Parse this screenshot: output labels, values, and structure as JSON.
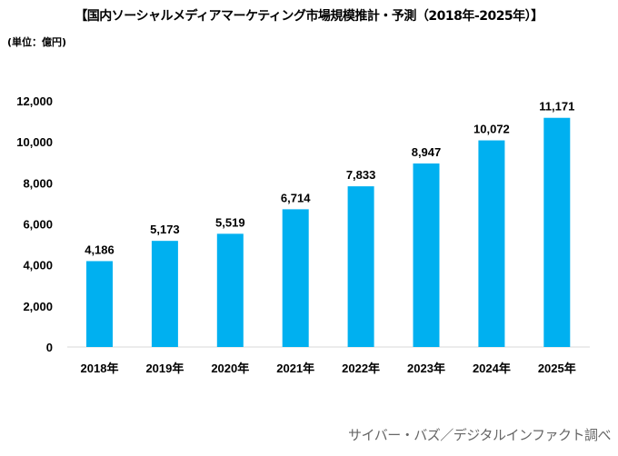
{
  "chart_data": {
    "type": "bar",
    "title": "【国内ソーシャルメディアマーケティング市場規模推計・予測（2018年-2025年）】",
    "unit_label": "(単位：億円)",
    "categories": [
      "2018年",
      "2019年",
      "2020年",
      "2021年",
      "2022年",
      "2023年",
      "2024年",
      "2025年"
    ],
    "values": [
      4186,
      5173,
      5519,
      6714,
      7833,
      8947,
      10072,
      11171
    ],
    "data_labels": [
      "4,186",
      "5,173",
      "5,519",
      "6,714",
      "7,833",
      "8,947",
      "10,072",
      "11,171"
    ],
    "ylim": [
      0,
      12000
    ],
    "yticks": [
      "0",
      "2,000",
      "4,000",
      "6,000",
      "8,000",
      "10,000",
      "12,000"
    ],
    "grid": false,
    "bar_color": "#00B0F0",
    "source": "サイバー・バズ／デジタルインファクト調べ"
  }
}
